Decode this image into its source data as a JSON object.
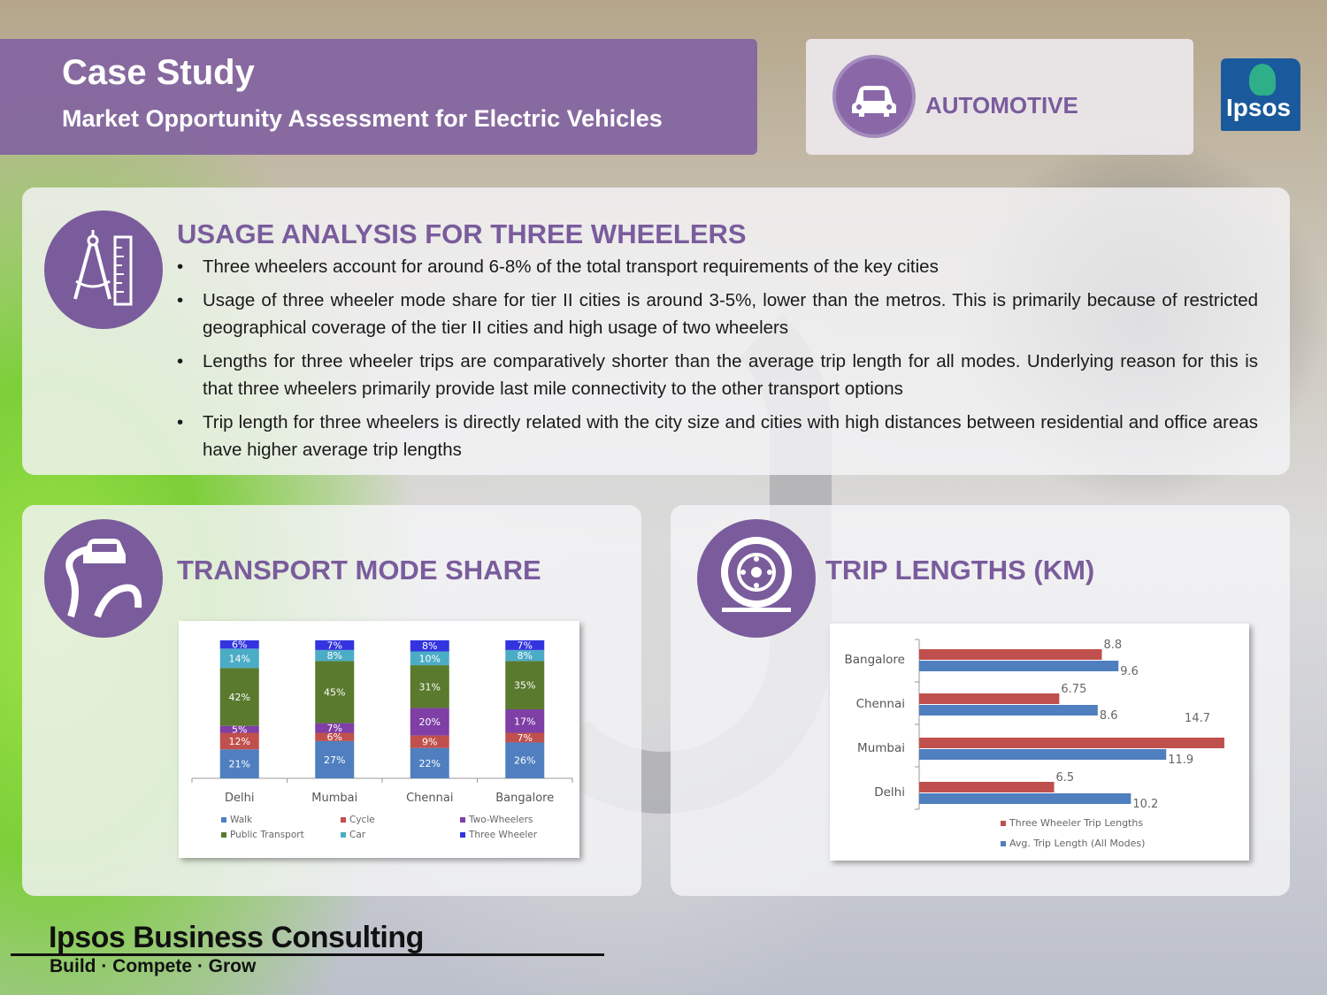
{
  "header": {
    "title": "Case Study",
    "subtitle": "Market Opportunity Assessment for Electric Vehicles",
    "sector_label": "AUTOMOTIVE",
    "logo_text": "Ipsos"
  },
  "usage": {
    "title": "USAGE ANALYSIS FOR THREE WHEELERS",
    "bullets": [
      "Three wheelers account for around 6-8% of the total transport requirements of the key cities",
      "Usage of three wheeler mode share for tier II cities is around 3-5%, lower than the metros.  This is primarily because of restricted geographical coverage of the tier II cities and high usage of two wheelers",
      "Lengths for three wheeler trips are comparatively shorter than the average trip length for all modes. Underlying reason for this is that three wheelers primarily provide last mile connectivity to the other transport options",
      "Trip length for three wheelers is directly related with the city size and cities with high distances between residential and office areas have higher average trip lengths"
    ]
  },
  "mode_share": {
    "title": "TRANSPORT MODE SHARE"
  },
  "trip_lengths": {
    "title": "TRIP LENGTHS (KM)"
  },
  "chart_data": [
    {
      "type": "bar",
      "stacked": true,
      "categories": [
        "Delhi",
        "Mumbai",
        "Chennai",
        "Bangalore"
      ],
      "series": [
        {
          "name": "Walk",
          "values": [
            21,
            27,
            22,
            26
          ],
          "labels": [
            "21%",
            "27%",
            "22%",
            "26%"
          ],
          "color": "#4f7fbf"
        },
        {
          "name": "Cycle",
          "values": [
            12,
            6,
            9,
            7
          ],
          "labels": [
            "12%",
            "6%",
            "9%",
            "7%"
          ],
          "color": "#c0504d"
        },
        {
          "name": "Two-Wheelers",
          "values": [
            5,
            7,
            20,
            17
          ],
          "labels": [
            "5%",
            "7%",
            "20%",
            "17%"
          ],
          "color": "#7f3fa6"
        },
        {
          "name": "Public Transport",
          "values": [
            42,
            45,
            31,
            35
          ],
          "labels": [
            "42%",
            "45%",
            "31%",
            "35%"
          ],
          "color": "#5a7a2e"
        },
        {
          "name": "Car",
          "values": [
            14,
            8,
            10,
            8
          ],
          "labels": [
            "14%",
            "8%",
            "10%",
            "8%"
          ],
          "color": "#4bacc6"
        },
        {
          "name": "Three Wheeler",
          "values": [
            6,
            7,
            8,
            7
          ],
          "labels": [
            "6%",
            "7%",
            "8%",
            "7%"
          ],
          "color": "#3333e0"
        }
      ],
      "legend_position": "bottom"
    },
    {
      "type": "bar",
      "orientation": "horizontal",
      "categories": [
        "Bangalore",
        "Chennai",
        "Mumbai",
        "Delhi"
      ],
      "series": [
        {
          "name": "Three Wheeler Trip Lengths",
          "values": [
            8.8,
            6.75,
            14.7,
            6.5
          ],
          "labels": [
            "8.8",
            "6.75",
            "14.7",
            "6.5"
          ],
          "color": "#c0504d"
        },
        {
          "name": "Avg. Trip Length (All Modes)",
          "values": [
            9.6,
            8.6,
            11.9,
            10.2
          ],
          "labels": [
            "9.6",
            "8.6",
            "11.9",
            "10.2"
          ],
          "color": "#4f7fbf"
        }
      ],
      "xlim": [
        0,
        15
      ],
      "legend_position": "bottom"
    }
  ],
  "footer": {
    "brand": "Ipsos Business Consulting",
    "tagline": "Build · Compete · Grow"
  }
}
